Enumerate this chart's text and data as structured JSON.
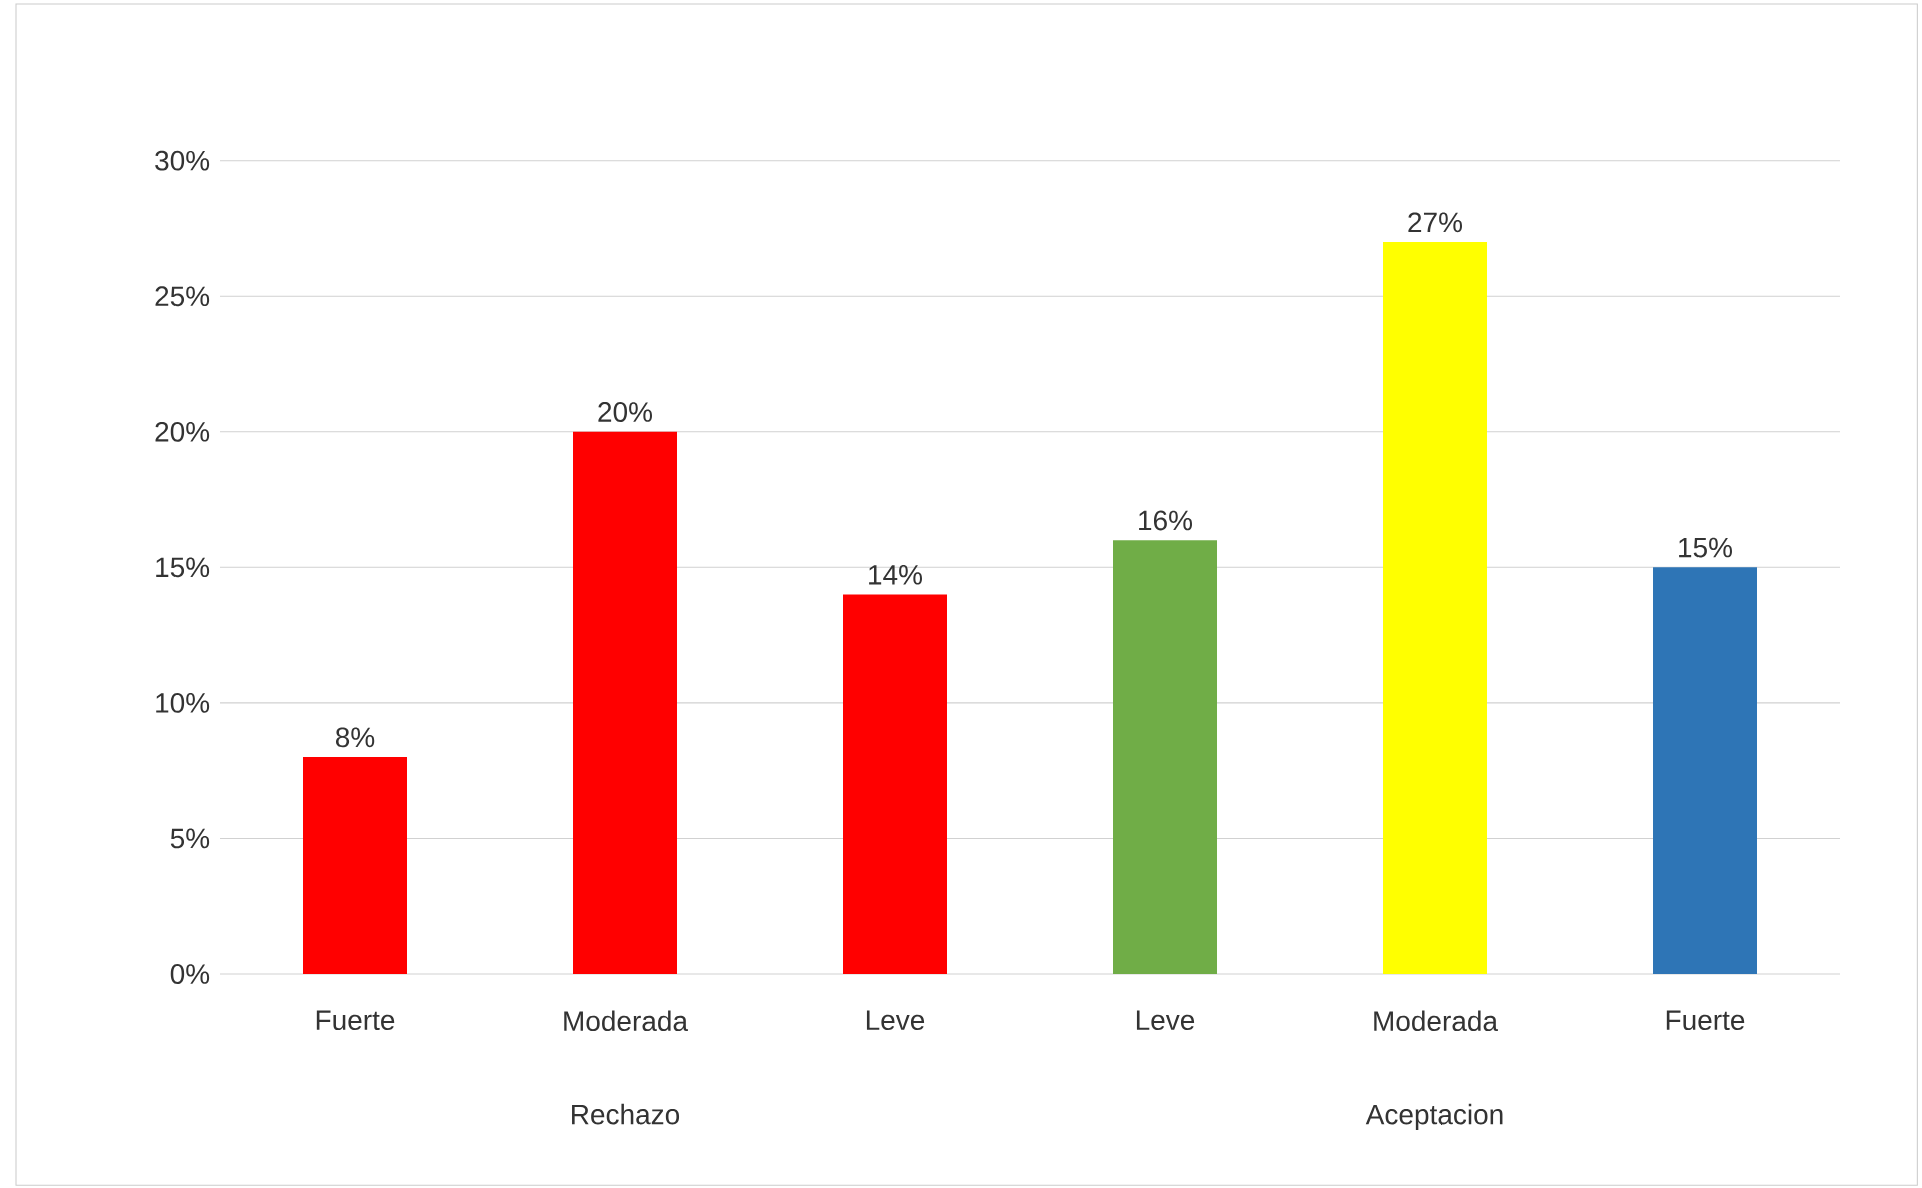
{
  "chart_data": {
    "type": "bar",
    "categories": [
      "Fuerte",
      "Moderada",
      "Leve",
      "Leve",
      "Moderada",
      "Fuerte"
    ],
    "values": [
      8,
      20,
      14,
      16,
      27,
      15
    ],
    "value_labels": [
      "8%",
      "20%",
      "14%",
      "16%",
      "27%",
      "15%"
    ],
    "colors": [
      "#ff0000",
      "#ff0000",
      "#ff0000",
      "#70ad47",
      "#ffff00",
      "#2e75b6"
    ],
    "ylim": [
      0,
      30
    ],
    "yticks": [
      {
        "value": 0,
        "label": "0%"
      },
      {
        "value": 5,
        "label": "5%"
      },
      {
        "value": 10,
        "label": "10%"
      },
      {
        "value": 15,
        "label": "15%"
      },
      {
        "value": 20,
        "label": "20%"
      },
      {
        "value": 25,
        "label": "25%"
      },
      {
        "value": 30,
        "label": "30%"
      }
    ],
    "grid": "y",
    "annotations": [
      "Rechazo",
      "Aceptacion"
    ]
  }
}
